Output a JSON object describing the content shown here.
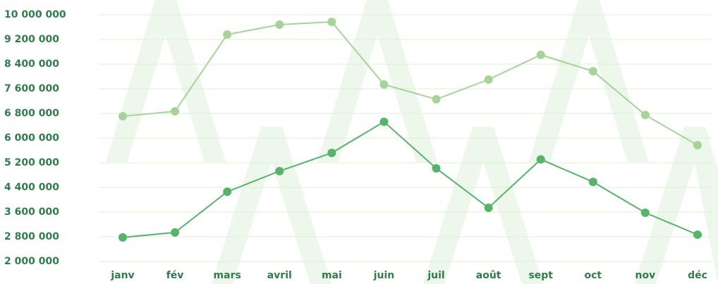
{
  "chart_data": {
    "type": "line",
    "categories": [
      "janv",
      "fév",
      "mars",
      "avril",
      "mai",
      "juin",
      "juil",
      "août",
      "sept",
      "oct",
      "nov",
      "déc"
    ],
    "series": [
      {
        "color": "#a5d496",
        "values": [
          6710000,
          6870000,
          9360000,
          9680000,
          9770000,
          7740000,
          7260000,
          7900000,
          8700000,
          8170000,
          6750000,
          5770000
        ]
      },
      {
        "color": "#55b36a",
        "values": [
          2780000,
          2940000,
          4260000,
          4930000,
          5520000,
          6530000,
          5020000,
          3740000,
          5310000,
          4580000,
          3580000,
          2870000
        ]
      }
    ],
    "ylim": [
      2000000,
      10000000
    ],
    "yticks": [
      {
        "value": 2000000,
        "label": "2 000 000"
      },
      {
        "value": 2800000,
        "label": "2 800 000"
      },
      {
        "value": 3600000,
        "label": "3 600 000"
      },
      {
        "value": 4400000,
        "label": "4 400 000"
      },
      {
        "value": 5200000,
        "label": "5 200 000"
      },
      {
        "value": 6000000,
        "label": "6 000 000"
      },
      {
        "value": 6800000,
        "label": "6 800 000"
      },
      {
        "value": 7600000,
        "label": "7 600 000"
      },
      {
        "value": 8400000,
        "label": "8 400 000"
      },
      {
        "value": 9200000,
        "label": "9 200 000"
      },
      {
        "value": 10000000,
        "label": "10 000 000"
      }
    ],
    "grid": true
  }
}
